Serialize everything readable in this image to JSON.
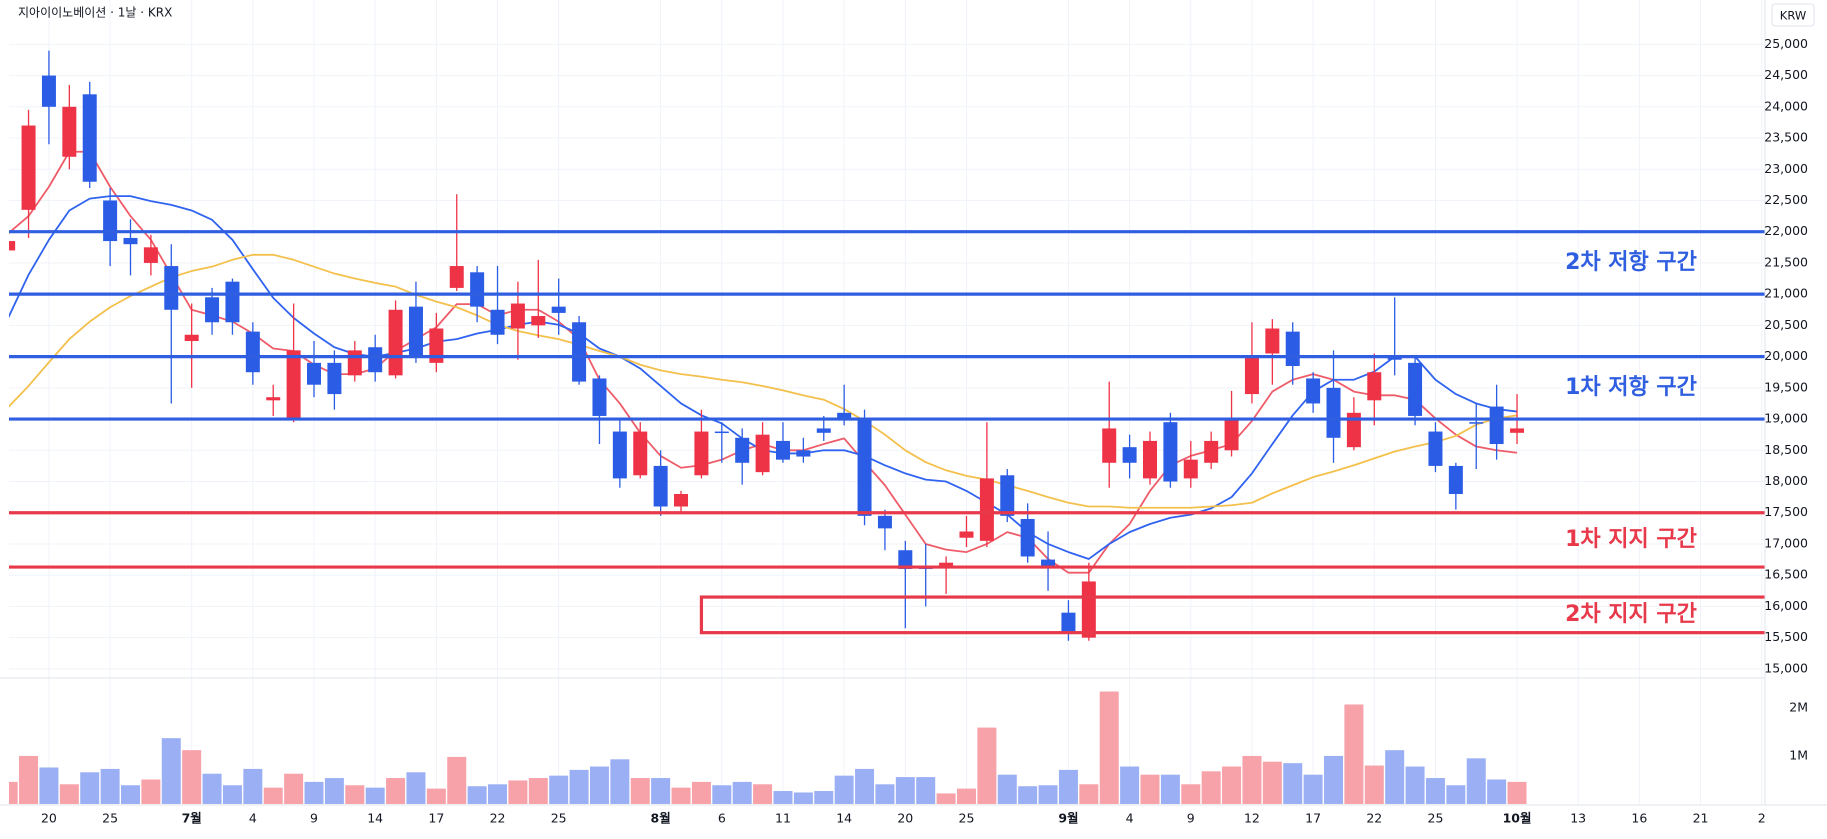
{
  "chart_data": {
    "type": "candlestick",
    "title": "지아이이노베이션 · 1날 · KRX",
    "currency": "KRW",
    "categories": [
      null,
      null,
      "20",
      null,
      null,
      "25",
      null,
      null,
      null,
      "7월",
      null,
      null,
      "4",
      null,
      null,
      "9",
      null,
      null,
      "14",
      null,
      null,
      "17",
      null,
      null,
      "22",
      null,
      null,
      "25",
      null,
      null,
      null,
      null,
      "8월",
      null,
      null,
      "6",
      null,
      null,
      "11",
      null,
      null,
      "14",
      null,
      null,
      "20",
      null,
      null,
      "25",
      null,
      null,
      null,
      null,
      "9월",
      null,
      null,
      "4",
      null,
      null,
      "9",
      null,
      null,
      "12",
      null,
      null,
      "17",
      null,
      null,
      "22",
      null,
      null,
      "25",
      null,
      null,
      null,
      "10월",
      null,
      null,
      "13",
      null,
      null,
      "16",
      null,
      null,
      "21",
      null,
      null,
      "2"
    ],
    "open": [
      21700,
      22350,
      24500,
      23200,
      24200,
      22500,
      21900,
      21500,
      21450,
      20250,
      20950,
      21200,
      20400,
      19300,
      19000,
      19900,
      19900,
      19700,
      20150,
      19700,
      20800,
      19900,
      21100,
      21350,
      20750,
      20450,
      20500,
      20800,
      20550,
      19650,
      18800,
      18100,
      18250,
      17600,
      18100,
      18800,
      18700,
      18150,
      18650,
      18500,
      18850,
      19100,
      19000,
      17450,
      16900,
      16650,
      16650,
      17100,
      17050,
      18100,
      17400,
      16750,
      15900,
      15500,
      18300,
      18550,
      18050,
      18950,
      18050,
      18300,
      18500,
      19400,
      20050,
      20400,
      19650,
      19500,
      18550,
      19300,
      20000,
      19900,
      18800,
      18250,
      18950,
      19200,
      18780,
      null,
      null,
      null,
      null,
      null,
      null,
      null,
      null,
      null,
      null,
      null,
      null
    ],
    "high": [
      21850,
      23950,
      24900,
      24350,
      24400,
      22700,
      22200,
      21950,
      21800,
      20850,
      21100,
      21250,
      20550,
      19550,
      20850,
      20250,
      20100,
      20250,
      20350,
      20900,
      21200,
      20700,
      22600,
      21450,
      21450,
      21200,
      21550,
      21250,
      20650,
      19700,
      19000,
      18950,
      18500,
      17850,
      19150,
      18950,
      18850,
      18950,
      18950,
      18700,
      19050,
      19550,
      19150,
      17550,
      17050,
      17000,
      16800,
      17450,
      18950,
      18200,
      17650,
      17200,
      16100,
      16700,
      19600,
      18750,
      18800,
      19100,
      18650,
      18800,
      19450,
      20550,
      20600,
      20550,
      19750,
      20100,
      19350,
      20050,
      20950,
      20000,
      18950,
      18300,
      19250,
      19550,
      19400,
      null,
      null,
      null,
      null,
      null,
      null,
      null,
      null,
      null,
      null,
      null,
      null
    ],
    "low": [
      21700,
      21900,
      23400,
      23000,
      22700,
      21450,
      21300,
      21300,
      19250,
      19500,
      20350,
      20350,
      19550,
      19050,
      18950,
      19350,
      19150,
      19600,
      19600,
      19650,
      19900,
      19750,
      21050,
      20550,
      20200,
      19950,
      20300,
      20350,
      19550,
      18600,
      17900,
      18050,
      17450,
      17500,
      18050,
      18300,
      17950,
      18100,
      18300,
      18300,
      18650,
      18900,
      17300,
      16900,
      15650,
      16000,
      16200,
      16950,
      16950,
      17350,
      16700,
      16250,
      15450,
      15450,
      17900,
      18050,
      17950,
      17900,
      17900,
      18200,
      18400,
      19250,
      19550,
      19550,
      19100,
      18300,
      18500,
      18900,
      19700,
      18900,
      18150,
      17550,
      18200,
      18350,
      18600,
      null,
      null,
      null,
      null,
      null,
      null,
      null,
      null,
      null,
      null,
      null,
      null
    ],
    "close": [
      21850,
      23700,
      24000,
      24000,
      22800,
      21850,
      21800,
      21750,
      20750,
      20350,
      20550,
      20550,
      19750,
      19350,
      20100,
      19550,
      19400,
      20100,
      19750,
      20750,
      20000,
      20450,
      21450,
      20800,
      20350,
      20850,
      20650,
      20700,
      19600,
      19050,
      18050,
      18800,
      17600,
      17800,
      18800,
      18780,
      18300,
      18750,
      18350,
      18400,
      18780,
      19000,
      17450,
      17250,
      16600,
      16600,
      16700,
      17200,
      18050,
      17450,
      16800,
      16650,
      15600,
      16400,
      18850,
      18300,
      18650,
      18000,
      18350,
      18650,
      19000,
      20000,
      20450,
      19850,
      19250,
      18700,
      19100,
      19750,
      19950,
      19050,
      18250,
      17800,
      18930,
      18600,
      18850,
      null,
      null,
      null,
      null,
      null,
      null,
      null,
      null,
      null,
      null,
      null,
      null
    ],
    "volume": [
      460000,
      1000000,
      760000,
      410000,
      660000,
      730000,
      390000,
      510000,
      1370000,
      1120000,
      630000,
      390000,
      730000,
      340000,
      630000,
      460000,
      540000,
      390000,
      340000,
      540000,
      660000,
      320000,
      980000,
      370000,
      410000,
      490000,
      540000,
      590000,
      710000,
      780000,
      930000,
      540000,
      540000,
      340000,
      460000,
      390000,
      460000,
      410000,
      270000,
      240000,
      270000,
      590000,
      730000,
      410000,
      560000,
      560000,
      220000,
      320000,
      1590000,
      610000,
      370000,
      390000,
      710000,
      410000,
      2340000,
      780000,
      610000,
      610000,
      410000,
      680000,
      780000,
      1000000,
      880000,
      850000,
      610000,
      1000000,
      2070000,
      800000,
      1120000,
      780000,
      540000,
      390000,
      950000,
      510000,
      460000,
      null,
      null,
      null,
      null,
      null,
      null,
      null,
      null,
      null,
      null,
      null,
      null
    ],
    "series": [
      {
        "color": "#ee5c69",
        "values": [
          21970,
          22250,
          22720,
          23280,
          23280,
          22720,
          22250,
          21870,
          21310,
          20750,
          20660,
          20560,
          20370,
          20130,
          20090,
          19870,
          19720,
          19720,
          19810,
          20090,
          20280,
          20470,
          20840,
          20840,
          20660,
          20750,
          20750,
          20560,
          20280,
          19630,
          19250,
          18780,
          18410,
          18220,
          18260,
          18350,
          18500,
          18600,
          18500,
          18500,
          18600,
          18690,
          18310,
          17940,
          17470,
          17000,
          16910,
          16870,
          17000,
          17190,
          17100,
          16760,
          16540,
          16540,
          17000,
          17320,
          17850,
          18260,
          18410,
          18500,
          18600,
          18970,
          19440,
          19630,
          19720,
          19630,
          19440,
          19380,
          19380,
          19310,
          19010,
          18750,
          18560,
          18500,
          18460,
          null,
          null,
          null,
          null,
          null,
          null,
          null,
          null,
          null,
          null,
          null,
          null
        ]
      },
      {
        "color": "#2f63f0",
        "values": [
          20620,
          21310,
          21870,
          22340,
          22530,
          22570,
          22570,
          22490,
          22430,
          22340,
          22190,
          21870,
          21400,
          20940,
          20620,
          20370,
          20150,
          20040,
          20000,
          20060,
          20130,
          20240,
          20280,
          20370,
          20430,
          20510,
          20560,
          20510,
          20370,
          20130,
          20000,
          19810,
          19530,
          19250,
          19060,
          18930,
          18690,
          18500,
          18450,
          18450,
          18500,
          18500,
          18410,
          18260,
          18130,
          18030,
          18000,
          17850,
          17660,
          17470,
          17190,
          17000,
          16870,
          16760,
          17000,
          17190,
          17320,
          17420,
          17470,
          17570,
          17750,
          18130,
          18600,
          19060,
          19440,
          19630,
          19630,
          19760,
          20000,
          20000,
          19630,
          19400,
          19250,
          19160,
          19120,
          null,
          null,
          null,
          null,
          null,
          null,
          null,
          null,
          null,
          null,
          null,
          null
        ]
      },
      {
        "color": "#f4c04c",
        "values": [
          19190,
          19530,
          19910,
          20280,
          20560,
          20790,
          20970,
          21120,
          21270,
          21370,
          21440,
          21550,
          21630,
          21630,
          21550,
          21440,
          21330,
          21250,
          21180,
          21120,
          20990,
          20880,
          20790,
          20660,
          20510,
          20410,
          20340,
          20280,
          20190,
          20090,
          20000,
          19870,
          19780,
          19720,
          19680,
          19630,
          19590,
          19530,
          19460,
          19380,
          19310,
          19160,
          18970,
          18750,
          18500,
          18310,
          18180,
          18090,
          18030,
          17940,
          17850,
          17750,
          17660,
          17600,
          17600,
          17580,
          17580,
          17580,
          17580,
          17600,
          17620,
          17660,
          17810,
          17940,
          18070,
          18160,
          18260,
          18370,
          18480,
          18560,
          18630,
          18730,
          18910,
          19010,
          19060,
          null,
          null,
          null,
          null,
          null,
          null,
          null,
          null,
          null,
          null,
          null,
          null
        ]
      }
    ],
    "up_color": "#ef3347",
    "down_color": "#2b5ce6",
    "volume_up_color": "#f7a1a9",
    "volume_down_color": "#9bb0f4",
    "ylim": [
      14870,
      25710
    ],
    "yticks": [
      {
        "value": 15000,
        "label": "15,000"
      },
      {
        "value": 15500,
        "label": "15,500"
      },
      {
        "value": 16000,
        "label": "16,000"
      },
      {
        "value": 16500,
        "label": "16,500"
      },
      {
        "value": 17000,
        "label": "17,000"
      },
      {
        "value": 17500,
        "label": "17,500"
      },
      {
        "value": 18000,
        "label": "18,000"
      },
      {
        "value": 18500,
        "label": "18,500"
      },
      {
        "value": 19000,
        "label": "19,000"
      },
      {
        "value": 19500,
        "label": "19,500"
      },
      {
        "value": 20000,
        "label": "20,000"
      },
      {
        "value": 20500,
        "label": "20,500"
      },
      {
        "value": 21000,
        "label": "21,000"
      },
      {
        "value": 21500,
        "label": "21,500"
      },
      {
        "value": 22000,
        "label": "22,000"
      },
      {
        "value": 22500,
        "label": "22,500"
      },
      {
        "value": 23000,
        "label": "23,000"
      },
      {
        "value": 23500,
        "label": "23,500"
      },
      {
        "value": 24000,
        "label": "24,000"
      },
      {
        "value": 24500,
        "label": "24,500"
      },
      {
        "value": 25000,
        "label": "25,000"
      }
    ],
    "vlim": [
      0,
      2580000
    ],
    "vticks": [
      {
        "value": 1000000,
        "label": "1M"
      },
      {
        "value": 2000000,
        "label": "2M"
      }
    ],
    "grid": true,
    "zones": [
      {
        "label": "2차 저항 구간",
        "from": 22000,
        "to": 21000,
        "color": "#2f5fe0"
      },
      {
        "label": "1차 저항 구간",
        "from": 20000,
        "to": 19000,
        "color": "#2f5fe0"
      },
      {
        "label": "1차 지지 구간",
        "from": 17500,
        "to": 16630,
        "color": "#e8394b"
      },
      {
        "label": "2차 지지 구간",
        "from": 16150,
        "to": 15580,
        "color": "#e8394b",
        "start": 34
      }
    ]
  }
}
